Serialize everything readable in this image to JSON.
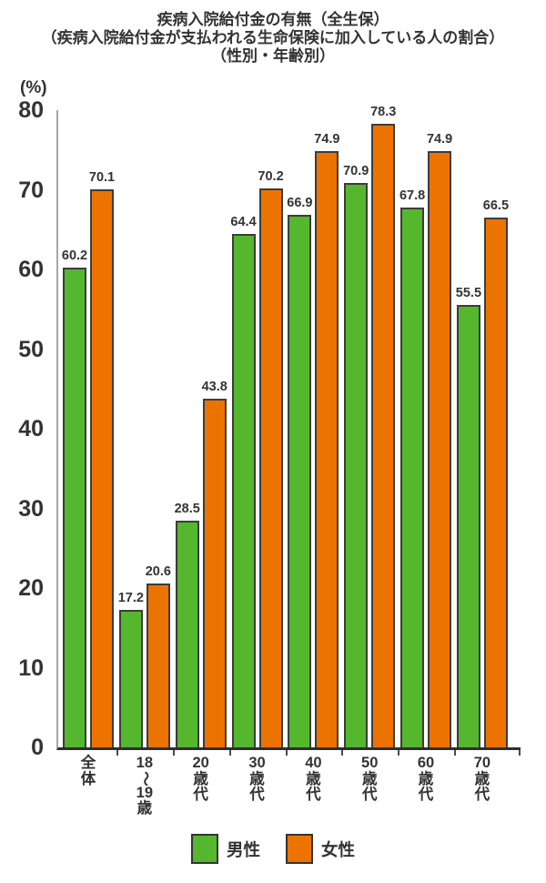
{
  "title": {
    "line1": "疾病入院給付金の有無（全生保）",
    "line2": "（疾病入院給付金が支払われる生命保険に加入している人の割合）",
    "line3": "（性別・年齢別）"
  },
  "y_axis": {
    "unit_label": "(%)",
    "ticks": [
      80,
      70,
      60,
      50,
      40,
      30,
      20,
      10,
      0
    ]
  },
  "chart_data": {
    "type": "bar",
    "title": "疾病入院給付金の有無（全生保）（疾病入院給付金が支払われる生命保険に加入している人の割合）（性別・年齢別）",
    "xlabel": "",
    "ylabel": "(%)",
    "ylim": [
      0,
      80
    ],
    "yticks": [
      0,
      10,
      20,
      30,
      40,
      50,
      60,
      70,
      80
    ],
    "grid": false,
    "legend_position": "bottom",
    "categories": [
      "全体",
      "18〜19歳",
      "20歳代",
      "30歳代",
      "40歳代",
      "50歳代",
      "60歳代",
      "70歳代"
    ],
    "category_lines": [
      [
        "全",
        "体"
      ],
      [
        "18",
        "〜",
        "19",
        "歳"
      ],
      [
        "20",
        "歳",
        "代"
      ],
      [
        "30",
        "歳",
        "代"
      ],
      [
        "40",
        "歳",
        "代"
      ],
      [
        "50",
        "歳",
        "代"
      ],
      [
        "60",
        "歳",
        "代"
      ],
      [
        "70",
        "歳",
        "代"
      ]
    ],
    "series": [
      {
        "name": "男性",
        "color": "#55b72e",
        "values": [
          60.2,
          17.2,
          28.5,
          64.4,
          66.9,
          70.9,
          67.8,
          55.5
        ]
      },
      {
        "name": "女性",
        "color": "#ed7300",
        "values": [
          70.1,
          20.6,
          43.8,
          70.2,
          74.9,
          78.3,
          74.9,
          66.5
        ]
      }
    ]
  },
  "legend": {
    "items": [
      {
        "label": "男性",
        "color": "#55b72e"
      },
      {
        "label": "女性",
        "color": "#ed7300"
      }
    ]
  },
  "colors": {
    "male_bar": "#55b72e",
    "female_bar": "#ed7300",
    "bar_border": "#3c3c3c",
    "text": "#333333",
    "axis_line": "#a6a6a6",
    "baseline": "#2e2e2e"
  }
}
